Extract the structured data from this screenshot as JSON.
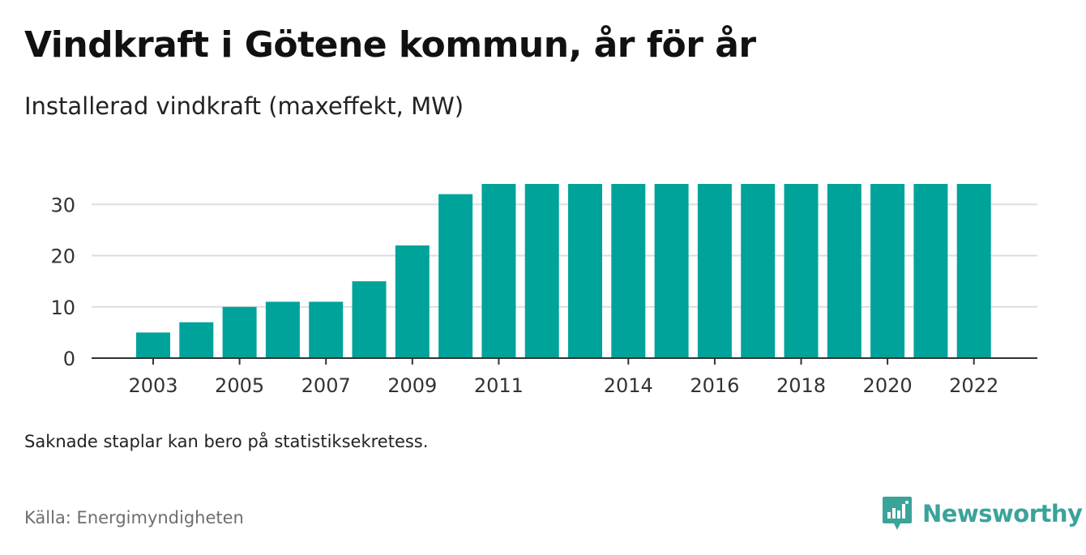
{
  "header": {
    "title": "Vindkraft i Götene kommun, år för år",
    "subtitle": "Installerad vindkraft (maxeffekt, MW)"
  },
  "footer": {
    "note": "Saknade staplar kan bero på statistiksekretess.",
    "source": "Källa: Energimyndigheten",
    "brand": "Newsworthy",
    "brand_icon": "newsworthy-logo-icon"
  },
  "colors": {
    "bar": "#00a39a",
    "grid": "#dddddd",
    "axis": "#333333",
    "brand": "#3aa39a"
  },
  "chart_data": {
    "type": "bar",
    "categories": [
      "2003",
      "2004",
      "2005",
      "2006",
      "2007",
      "2008",
      "2009",
      "2010",
      "2011",
      "2012",
      "2013",
      "2014",
      "2015",
      "2016",
      "2017",
      "2018",
      "2019",
      "2020",
      "2021",
      "2022"
    ],
    "values": [
      5,
      7,
      10,
      11,
      11,
      15,
      22,
      32,
      34,
      34,
      34,
      34,
      34,
      34,
      34,
      34,
      34,
      34,
      34,
      34
    ],
    "x_tick_labels": [
      "2003",
      "2005",
      "2007",
      "2009",
      "2011",
      "2014",
      "2016",
      "2018",
      "2020",
      "2022"
    ],
    "y_ticks": [
      0,
      10,
      20,
      30
    ],
    "ylim": [
      0,
      34
    ],
    "grid": true,
    "xlabel": "",
    "ylabel": ""
  }
}
